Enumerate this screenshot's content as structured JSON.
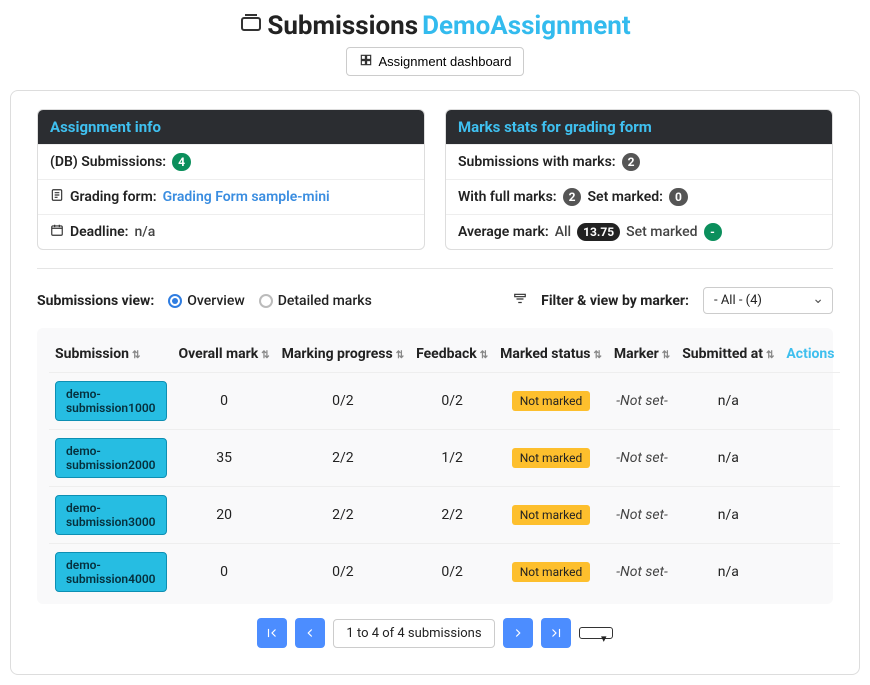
{
  "header": {
    "title_prefix": "Submissions",
    "title_link": "DemoAssignment",
    "dashboard_button": "Assignment dashboard"
  },
  "assignment_info": {
    "header": "Assignment info",
    "db_submissions_label": "(DB) Submissions:",
    "db_submissions_count": "4",
    "grading_form_label": "Grading form:",
    "grading_form_link": "Grading Form sample-mini",
    "deadline_label": "Deadline:",
    "deadline_value": "n/a"
  },
  "marks_stats": {
    "header": "Marks stats for grading form",
    "with_marks_label": "Submissions with marks:",
    "with_marks_count": "2",
    "full_marks_label": "With full marks:",
    "full_marks_count": "2",
    "set_marked_label": "Set marked:",
    "set_marked_count": "0",
    "avg_label": "Average mark:",
    "avg_all_label": "All",
    "avg_all_value": "13.75",
    "avg_set_label": "Set marked",
    "avg_set_value": "-"
  },
  "controls": {
    "view_label": "Submissions view:",
    "radio_overview": "Overview",
    "radio_detailed": "Detailed marks",
    "filter_label": "Filter & view by marker:",
    "filter_selected": "- All - (4)"
  },
  "table": {
    "columns": {
      "submission": "Submission",
      "overall_mark": "Overall mark",
      "marking_progress": "Marking progress",
      "feedback": "Feedback",
      "marked_status": "Marked status",
      "marker": "Marker",
      "submitted_at": "Submitted at",
      "actions": "Actions"
    },
    "rows": [
      {
        "name": "demo-submission1000",
        "mark": "0",
        "progress": "0/2",
        "feedback": "0/2",
        "status": "Not marked",
        "marker": "-Not set-",
        "submitted": "n/a"
      },
      {
        "name": "demo-submission2000",
        "mark": "35",
        "progress": "2/2",
        "feedback": "1/2",
        "status": "Not marked",
        "marker": "-Not set-",
        "submitted": "n/a"
      },
      {
        "name": "demo-submission3000",
        "mark": "20",
        "progress": "2/2",
        "feedback": "2/2",
        "status": "Not marked",
        "marker": "-Not set-",
        "submitted": "n/a"
      },
      {
        "name": "demo-submission4000",
        "mark": "0",
        "progress": "0/2",
        "feedback": "0/2",
        "status": "Not marked",
        "marker": "-Not set-",
        "submitted": "n/a"
      }
    ]
  },
  "pager": {
    "info": "1 to 4 of 4 submissions"
  },
  "colors": {
    "accent_blue": "#33bbee",
    "badge_green": "#0b8f5c",
    "badge_grey": "#555555",
    "badge_dark": "#222222",
    "status_yellow": "#fdbf2d",
    "pill_cyan": "#26bde2",
    "pager_blue": "#4c8dff"
  }
}
